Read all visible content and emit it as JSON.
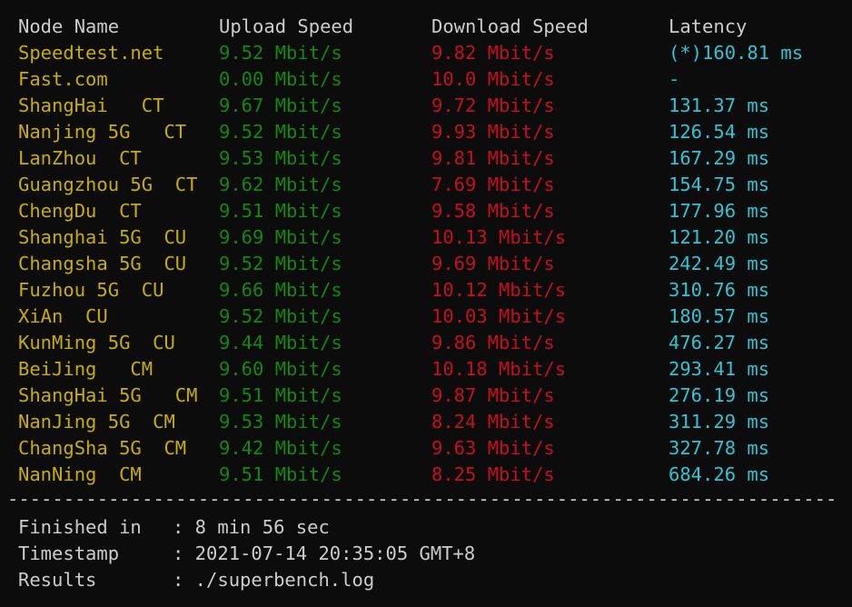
{
  "separator": "--------------------------------------------------------------------------",
  "header": {
    "node": "Node Name",
    "upload": "Upload Speed",
    "download": "Download Speed",
    "latency": "Latency"
  },
  "colors": {
    "node": "#c8ae00",
    "upload": "#13870e",
    "download": "#c50f1f",
    "latency": "#2fc4d4",
    "text": "#cccccc",
    "background": "#0c0c0c"
  },
  "rows": [
    {
      "node": "Speedtest.net",
      "upload": "9.52 Mbit/s",
      "download": "9.82 Mbit/s",
      "latency": "(*)160.81 ms"
    },
    {
      "node": "Fast.com",
      "upload": "0.00 Mbit/s",
      "download": "10.0 Mbit/s",
      "latency": "-"
    },
    {
      "node": "ShangHai   CT",
      "upload": "9.67 Mbit/s",
      "download": "9.72 Mbit/s",
      "latency": "131.37 ms"
    },
    {
      "node": "Nanjing 5G   CT",
      "upload": "9.52 Mbit/s",
      "download": "9.93 Mbit/s",
      "latency": "126.54 ms"
    },
    {
      "node": "LanZhou  CT",
      "upload": "9.53 Mbit/s",
      "download": "9.81 Mbit/s",
      "latency": "167.29 ms"
    },
    {
      "node": "Guangzhou 5G  CT",
      "upload": "9.62 Mbit/s",
      "download": "7.69 Mbit/s",
      "latency": "154.75 ms"
    },
    {
      "node": "ChengDu  CT",
      "upload": "9.51 Mbit/s",
      "download": "9.58 Mbit/s",
      "latency": "177.96 ms"
    },
    {
      "node": "Shanghai 5G  CU",
      "upload": "9.69 Mbit/s",
      "download": "10.13 Mbit/s",
      "latency": "121.20 ms"
    },
    {
      "node": "Changsha 5G  CU",
      "upload": "9.52 Mbit/s",
      "download": "9.69 Mbit/s",
      "latency": "242.49 ms"
    },
    {
      "node": "Fuzhou 5G  CU",
      "upload": "9.66 Mbit/s",
      "download": "10.12 Mbit/s",
      "latency": "310.76 ms"
    },
    {
      "node": "XiAn  CU",
      "upload": "9.52 Mbit/s",
      "download": "10.03 Mbit/s",
      "latency": "180.57 ms"
    },
    {
      "node": "KunMing 5G  CU",
      "upload": "9.44 Mbit/s",
      "download": "9.86 Mbit/s",
      "latency": "476.27 ms"
    },
    {
      "node": "BeiJing   CM",
      "upload": "9.60 Mbit/s",
      "download": "10.18 Mbit/s",
      "latency": "293.41 ms"
    },
    {
      "node": "ShangHai 5G   CM",
      "upload": "9.51 Mbit/s",
      "download": "9.87 Mbit/s",
      "latency": "276.19 ms"
    },
    {
      "node": "NanJing 5G  CM",
      "upload": "9.53 Mbit/s",
      "download": "8.24 Mbit/s",
      "latency": "311.29 ms"
    },
    {
      "node": "ChangSha 5G  CM",
      "upload": "9.42 Mbit/s",
      "download": "9.63 Mbit/s",
      "latency": "327.78 ms"
    },
    {
      "node": "NanNing  CM",
      "upload": "9.51 Mbit/s",
      "download": "8.25 Mbit/s",
      "latency": "684.26 ms"
    }
  ],
  "footer": [
    {
      "label": "Finished in",
      "value": ": 8 min 56 sec"
    },
    {
      "label": "Timestamp",
      "value": ": 2021-07-14 20:35:05 GMT+8"
    },
    {
      "label": "Results",
      "value": ": ./superbench.log"
    }
  ]
}
